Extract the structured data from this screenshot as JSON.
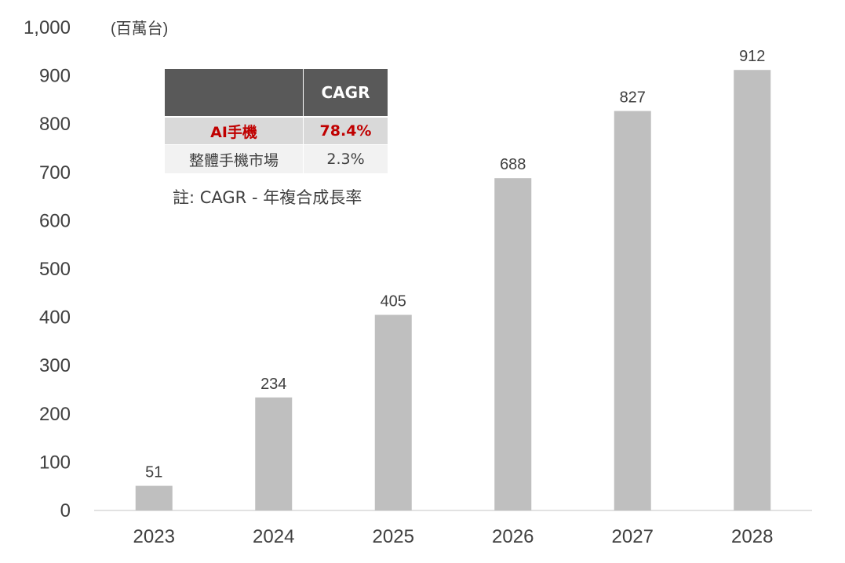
{
  "chart_data": {
    "type": "bar",
    "categories": [
      "2023",
      "2024",
      "2025",
      "2026",
      "2027",
      "2028"
    ],
    "values": [
      51,
      234,
      405,
      688,
      827,
      912
    ],
    "value_labels": [
      "51",
      "234",
      "405",
      "688",
      "827",
      "912"
    ],
    "ylim": [
      0,
      1000
    ],
    "yticks": [
      0,
      100,
      200,
      300,
      400,
      500,
      600,
      700,
      800,
      900,
      1000
    ],
    "ytick_labels": [
      "0",
      "100",
      "200",
      "300",
      "400",
      "500",
      "600",
      "700",
      "800",
      "900",
      "1,000"
    ],
    "unit_label": "(百萬台)",
    "grid": false,
    "bar_color": "#bfbfbf"
  },
  "cagr_table": {
    "header": [
      "",
      "CAGR"
    ],
    "rows": [
      {
        "label": "AI手機",
        "value": "78.4%",
        "highlight_color": "#c00000"
      },
      {
        "label": "整體手機市場",
        "value": "2.3%"
      }
    ]
  },
  "note": "註: CAGR - 年複合成長率"
}
